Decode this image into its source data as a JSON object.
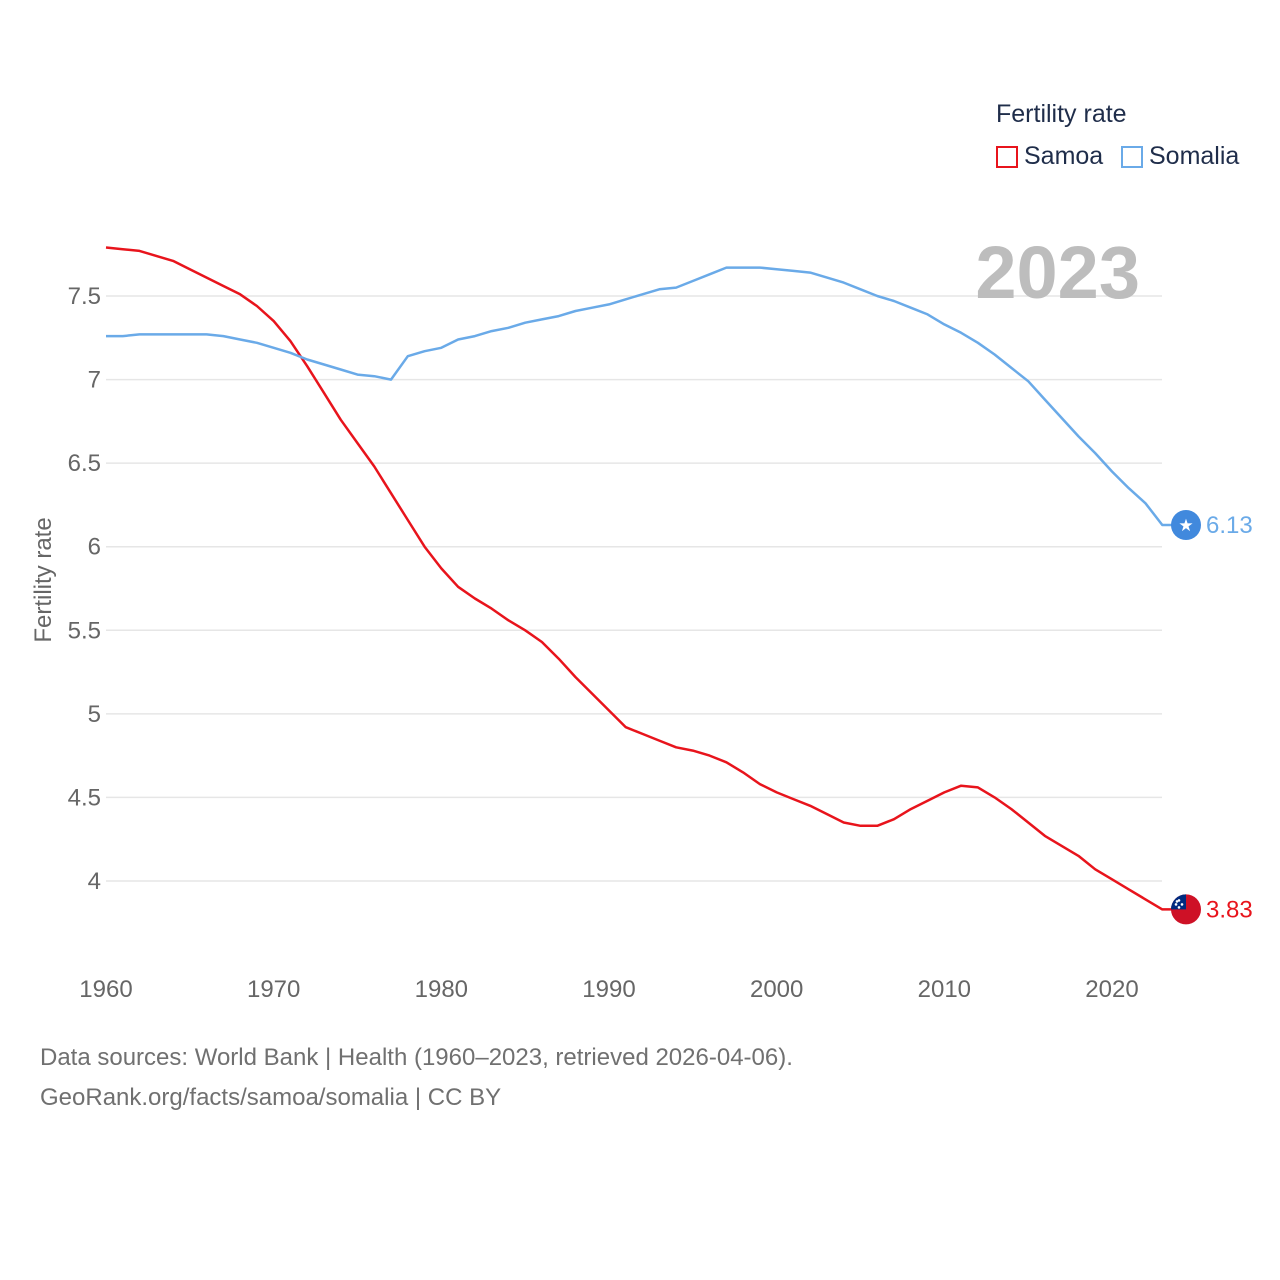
{
  "legend": {
    "title": "Fertility rate"
  },
  "big_year": "2023",
  "footer": {
    "line1": "Data sources: World Bank | Health (1960–2023, retrieved 2026-04-06).",
    "line2": "GeoRank.org/facts/samoa/somalia | CC BY"
  },
  "colors": {
    "samoa": "#e8141c",
    "somalia": "#6aaae8",
    "grid": "#e6e6e6",
    "axis_text": "#666666",
    "big_year": "#bdbdbd"
  },
  "chart_data": {
    "type": "line",
    "title": "",
    "xlabel": "",
    "ylabel": "Fertility rate",
    "xlim": [
      1960,
      2025
    ],
    "ylim": [
      3.55,
      7.85
    ],
    "x_ticks": [
      1960,
      1970,
      1980,
      1990,
      2000,
      2010,
      2020
    ],
    "y_ticks": [
      4,
      4.5,
      5,
      5.5,
      6,
      6.5,
      7,
      7.5
    ],
    "y_tick_labels": [
      "4",
      "4.5",
      "5",
      "5.5",
      "6",
      "6.5",
      "7",
      "7.5"
    ],
    "x": [
      1960,
      1961,
      1962,
      1963,
      1964,
      1965,
      1966,
      1967,
      1968,
      1969,
      1970,
      1971,
      1972,
      1973,
      1974,
      1975,
      1976,
      1977,
      1978,
      1979,
      1980,
      1981,
      1982,
      1983,
      1984,
      1985,
      1986,
      1987,
      1988,
      1989,
      1990,
      1991,
      1992,
      1993,
      1994,
      1995,
      1996,
      1997,
      1998,
      1999,
      2000,
      2001,
      2002,
      2003,
      2004,
      2005,
      2006,
      2007,
      2008,
      2009,
      2010,
      2011,
      2012,
      2013,
      2014,
      2015,
      2016,
      2017,
      2018,
      2019,
      2020,
      2021,
      2022,
      2023
    ],
    "series": [
      {
        "name": "Samoa",
        "color": "#e8141c",
        "end_label": "3.83",
        "values": [
          7.79,
          7.78,
          7.77,
          7.74,
          7.71,
          7.66,
          7.61,
          7.56,
          7.51,
          7.44,
          7.35,
          7.23,
          7.08,
          6.92,
          6.76,
          6.62,
          6.48,
          6.32,
          6.16,
          6.0,
          5.87,
          5.76,
          5.69,
          5.63,
          5.56,
          5.5,
          5.43,
          5.33,
          5.22,
          5.12,
          5.02,
          4.92,
          4.88,
          4.84,
          4.8,
          4.78,
          4.75,
          4.71,
          4.65,
          4.58,
          4.53,
          4.49,
          4.45,
          4.4,
          4.35,
          4.33,
          4.33,
          4.37,
          4.43,
          4.48,
          4.53,
          4.57,
          4.56,
          4.5,
          4.43,
          4.35,
          4.27,
          4.21,
          4.15,
          4.07,
          4.01,
          3.95,
          3.89,
          3.83
        ]
      },
      {
        "name": "Somalia",
        "color": "#6aaae8",
        "end_label": "6.13",
        "values": [
          7.26,
          7.26,
          7.27,
          7.27,
          7.27,
          7.27,
          7.27,
          7.26,
          7.24,
          7.22,
          7.19,
          7.16,
          7.12,
          7.09,
          7.06,
          7.03,
          7.02,
          7.0,
          7.14,
          7.17,
          7.19,
          7.24,
          7.26,
          7.29,
          7.31,
          7.34,
          7.36,
          7.38,
          7.41,
          7.43,
          7.45,
          7.48,
          7.51,
          7.54,
          7.55,
          7.59,
          7.63,
          7.67,
          7.67,
          7.67,
          7.66,
          7.65,
          7.64,
          7.61,
          7.58,
          7.54,
          7.5,
          7.47,
          7.43,
          7.39,
          7.33,
          7.28,
          7.22,
          7.15,
          7.07,
          6.99,
          6.88,
          6.77,
          6.66,
          6.56,
          6.45,
          6.35,
          6.26,
          6.13
        ]
      }
    ]
  }
}
